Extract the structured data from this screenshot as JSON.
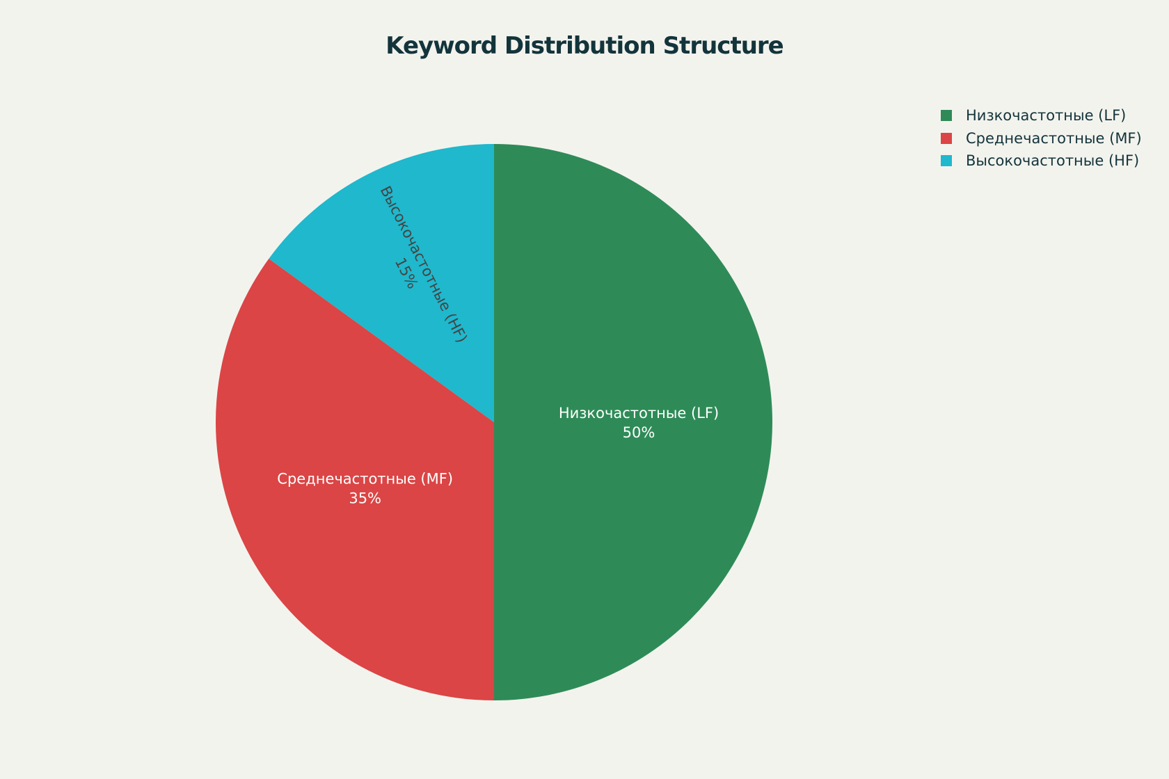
{
  "chart_data": {
    "type": "pie",
    "title": "Keyword Distribution Structure",
    "categories": [
      "Низкочастотные (LF)",
      "Среднечастотные (MF)",
      "Высокочастотные (HF)"
    ],
    "values": [
      50,
      35,
      15
    ],
    "value_labels": [
      "50%",
      "35%",
      "15%"
    ],
    "colors": [
      "#2e8b57",
      "#db4545",
      "#1fb8cd"
    ],
    "label_colors": [
      "#ffffff",
      "#ffffff",
      "#444444"
    ],
    "legend_position": "top-right",
    "start": "12 o'clock",
    "direction": "clockwise"
  }
}
